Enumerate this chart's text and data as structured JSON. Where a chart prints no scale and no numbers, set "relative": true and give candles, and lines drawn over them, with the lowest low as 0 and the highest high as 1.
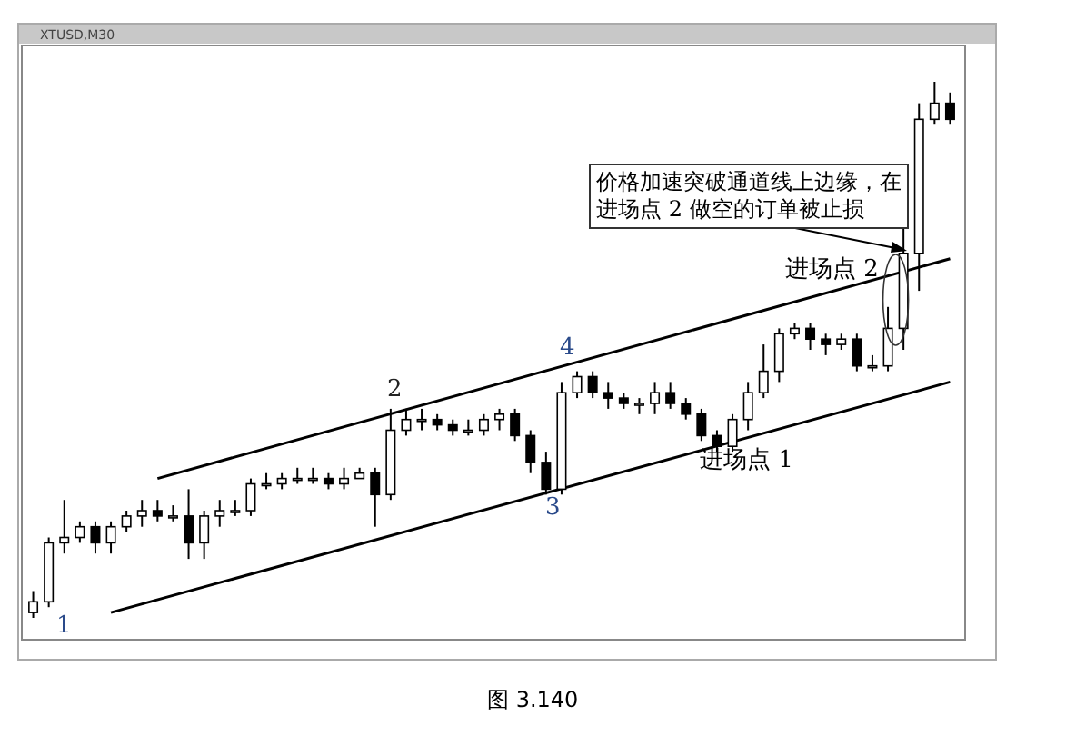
{
  "chart_data": {
    "type": "candlestick",
    "title": "XTUSD,M30",
    "relative": true,
    "color": "#000000",
    "categories": [
      null,
      null,
      null,
      null,
      null,
      null,
      null,
      null,
      null,
      null,
      null,
      null,
      null,
      null,
      null,
      null,
      null,
      null,
      null,
      null,
      null,
      null,
      null,
      null,
      null,
      null,
      null,
      null,
      null,
      null,
      null,
      null,
      null,
      null,
      null,
      null,
      null,
      null,
      null,
      null,
      null,
      null,
      null,
      null,
      null,
      null,
      null,
      null,
      null,
      null,
      null,
      null,
      null,
      null,
      null,
      null,
      null,
      null,
      null,
      null
    ],
    "ohlc": [
      [
        0.01,
        0.05,
        0,
        0.03
      ],
      [
        0.03,
        0.15,
        0.02,
        0.14
      ],
      [
        0.14,
        0.22,
        0.12,
        0.15
      ],
      [
        0.15,
        0.18,
        0.14,
        0.17
      ],
      [
        0.17,
        0.18,
        0.12,
        0.14
      ],
      [
        0.14,
        0.18,
        0.12,
        0.17
      ],
      [
        0.17,
        0.2,
        0.16,
        0.19
      ],
      [
        0.19,
        0.22,
        0.17,
        0.2
      ],
      [
        0.2,
        0.22,
        0.18,
        0.19
      ],
      [
        0.19,
        0.21,
        0.18,
        0.19
      ],
      [
        0.19,
        0.24,
        0.11,
        0.14
      ],
      [
        0.14,
        0.2,
        0.11,
        0.19
      ],
      [
        0.19,
        0.22,
        0.17,
        0.2
      ],
      [
        0.2,
        0.22,
        0.19,
        0.2
      ],
      [
        0.2,
        0.26,
        0.19,
        0.25
      ],
      [
        0.25,
        0.27,
        0.24,
        0.25
      ],
      [
        0.25,
        0.27,
        0.24,
        0.26
      ],
      [
        0.26,
        0.28,
        0.25,
        0.26
      ],
      [
        0.26,
        0.28,
        0.25,
        0.26
      ],
      [
        0.26,
        0.27,
        0.24,
        0.25
      ],
      [
        0.25,
        0.28,
        0.24,
        0.26
      ],
      [
        0.26,
        0.28,
        0.26,
        0.27
      ],
      [
        0.27,
        0.28,
        0.17,
        0.23
      ],
      [
        0.23,
        0.39,
        0.22,
        0.35
      ],
      [
        0.35,
        0.39,
        0.34,
        0.37
      ],
      [
        0.37,
        0.39,
        0.35,
        0.37
      ],
      [
        0.37,
        0.38,
        0.35,
        0.36
      ],
      [
        0.36,
        0.37,
        0.34,
        0.35
      ],
      [
        0.35,
        0.37,
        0.34,
        0.35
      ],
      [
        0.35,
        0.38,
        0.34,
        0.37
      ],
      [
        0.37,
        0.39,
        0.35,
        0.38
      ],
      [
        0.38,
        0.39,
        0.33,
        0.34
      ],
      [
        0.34,
        0.35,
        0.27,
        0.29
      ],
      [
        0.29,
        0.31,
        0.23,
        0.24
      ],
      [
        0.24,
        0.44,
        0.23,
        0.42
      ],
      [
        0.42,
        0.46,
        0.41,
        0.45
      ],
      [
        0.45,
        0.46,
        0.41,
        0.42
      ],
      [
        0.42,
        0.44,
        0.39,
        0.41
      ],
      [
        0.41,
        0.42,
        0.39,
        0.4
      ],
      [
        0.4,
        0.41,
        0.38,
        0.4
      ],
      [
        0.4,
        0.44,
        0.38,
        0.42
      ],
      [
        0.42,
        0.44,
        0.39,
        0.4
      ],
      [
        0.4,
        0.41,
        0.37,
        0.38
      ],
      [
        0.38,
        0.39,
        0.33,
        0.34
      ],
      [
        0.34,
        0.35,
        0.31,
        0.32
      ],
      [
        0.32,
        0.38,
        0.31,
        0.37
      ],
      [
        0.37,
        0.44,
        0.35,
        0.42
      ],
      [
        0.42,
        0.51,
        0.41,
        0.46
      ],
      [
        0.46,
        0.54,
        0.44,
        0.53
      ],
      [
        0.53,
        0.55,
        0.52,
        0.54
      ],
      [
        0.54,
        0.55,
        0.5,
        0.52
      ],
      [
        0.52,
        0.53,
        0.49,
        0.51
      ],
      [
        0.51,
        0.53,
        0.5,
        0.52
      ],
      [
        0.52,
        0.53,
        0.46,
        0.47
      ],
      [
        0.47,
        0.49,
        0.46,
        0.47
      ],
      [
        0.47,
        0.58,
        0.46,
        0.54
      ],
      [
        0.54,
        0.73,
        0.5,
        0.68
      ],
      [
        0.68,
        0.96,
        0.61,
        0.93
      ],
      [
        0.93,
        1,
        0.92,
        0.96
      ],
      [
        0.96,
        0.98,
        0.92,
        0.93
      ]
    ],
    "series": [
      {
        "type": "line",
        "values": [
          null,
          null,
          null,
          null,
          null,
          null,
          null,
          null,
          0.26,
          null,
          null,
          null,
          null,
          null,
          null,
          null,
          null,
          null,
          null,
          null,
          null,
          null,
          null,
          null,
          null,
          null,
          null,
          null,
          null,
          null,
          null,
          null,
          null,
          null,
          null,
          null,
          null,
          null,
          null,
          null,
          null,
          null,
          null,
          null,
          null,
          null,
          null,
          null,
          null,
          null,
          null,
          null,
          null,
          null,
          null,
          null,
          null,
          null,
          null,
          0.67
        ],
        "color": "#000000"
      },
      {
        "type": "line",
        "values": [
          null,
          null,
          null,
          null,
          null,
          0.01,
          null,
          null,
          null,
          null,
          null,
          null,
          null,
          null,
          null,
          null,
          null,
          null,
          null,
          null,
          null,
          null,
          null,
          null,
          null,
          null,
          null,
          null,
          null,
          null,
          null,
          null,
          null,
          null,
          null,
          null,
          null,
          null,
          null,
          null,
          null,
          null,
          null,
          null,
          null,
          null,
          null,
          null,
          null,
          null,
          null,
          null,
          null,
          null,
          null,
          null,
          null,
          null,
          null,
          0.44
        ],
        "color": "#000000"
      }
    ],
    "annotations": [
      "1",
      "2",
      "3",
      "4",
      "进场点 1",
      "进场点 2",
      "价格加速突破通道线上边缘，在进场点 2 做空的订单被止损",
      "图 3.140"
    ]
  }
}
